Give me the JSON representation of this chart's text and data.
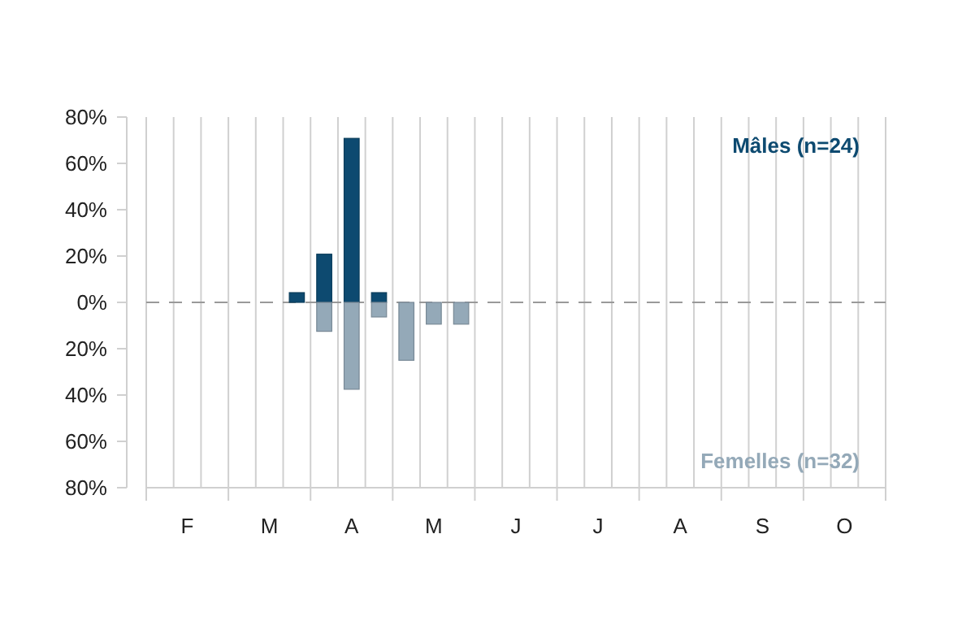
{
  "chart_data": {
    "type": "bar",
    "categories": [
      null,
      "F",
      null,
      null,
      "M",
      null,
      null,
      "A",
      null,
      null,
      "M",
      null,
      null,
      "J",
      null,
      null,
      "J",
      null,
      null,
      "A",
      null,
      null,
      "S",
      null,
      null,
      "O",
      null
    ],
    "series": [
      {
        "name": "Mâles (n=24)",
        "color": "#0d4a70",
        "values": [
          0,
          0,
          0,
          0,
          0,
          4.2,
          20.8,
          70.8,
          4.2,
          0,
          0,
          0,
          0,
          0,
          0,
          0,
          0,
          0,
          0,
          0,
          0,
          0,
          0,
          0,
          0,
          0,
          0
        ]
      },
      {
        "name": "Femelles (n=32)",
        "color": "#94a9b8",
        "values": [
          0,
          0,
          0,
          0,
          0,
          0,
          -12.5,
          -37.5,
          -6.3,
          -25,
          -9.4,
          -9.4,
          0,
          0,
          0,
          0,
          0,
          0,
          0,
          0,
          0,
          0,
          0,
          0,
          0,
          0,
          0
        ]
      }
    ],
    "ylim": [
      -80,
      80
    ],
    "yticks": [
      {
        "value": -80,
        "label": "80%"
      },
      {
        "value": -60,
        "label": "60%"
      },
      {
        "value": -40,
        "label": "40%"
      },
      {
        "value": -20,
        "label": "20%"
      },
      {
        "value": 0,
        "label": "0%"
      },
      {
        "value": 20,
        "label": "20%"
      },
      {
        "value": 40,
        "label": "40%"
      },
      {
        "value": 60,
        "label": "60%"
      },
      {
        "value": 80,
        "label": "80%"
      }
    ],
    "grid": "x",
    "legend": "right",
    "ref_lines": [
      {
        "axis": "y",
        "value": 0,
        "color": "#999999",
        "line_style": "dashed"
      }
    ]
  }
}
